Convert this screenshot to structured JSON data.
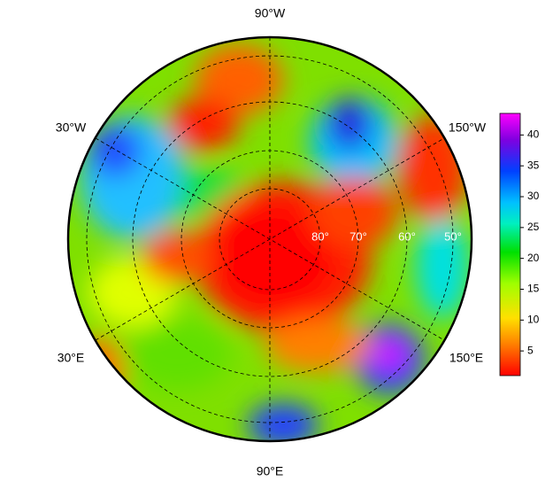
{
  "map": {
    "lon_labels": [
      "90°W",
      "30°W",
      "150°W",
      "30°E",
      "150°E",
      "90°E"
    ],
    "lat_labels": [
      "80°",
      "70°",
      "60°",
      "50°"
    ],
    "colorbar": {
      "lim": [
        1,
        43.5
      ],
      "ticks": [
        5,
        10,
        15,
        20,
        25,
        30,
        35,
        40
      ]
    }
  }
}
